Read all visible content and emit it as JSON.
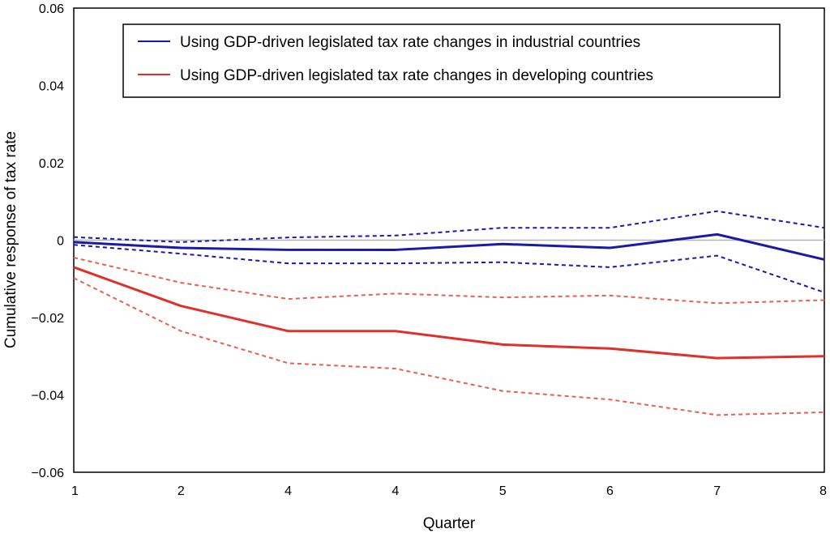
{
  "chart_data": {
    "type": "line",
    "title": "",
    "xlabel": "Quarter",
    "ylabel": "Cumulative response of tax rate",
    "categories": [
      "1",
      "2",
      "4",
      "4",
      "5",
      "6",
      "7",
      "8"
    ],
    "ylim": [
      -0.06,
      0.06
    ],
    "yticks": [
      "0.06",
      "0.04",
      "0.02",
      "0",
      "−0.02",
      "−0.04",
      "−0.06"
    ],
    "yticks_values": [
      0.06,
      0.04,
      0.02,
      0,
      -0.02,
      -0.04,
      -0.06
    ],
    "grid": false,
    "zero_line": true,
    "legend_position": "top",
    "series": [
      {
        "name": "Using GDP-driven legislated tax rate changes in industrial countries",
        "role": "estimate",
        "color": "#1a1aa8",
        "style": "solid",
        "values": [
          -0.0005,
          -0.002,
          -0.0025,
          -0.0025,
          -0.001,
          -0.002,
          0.0015,
          -0.005
        ]
      },
      {
        "role": "upper-band",
        "color": "#1a1aa8",
        "style": "dashed",
        "values": [
          0.0008,
          -0.0005,
          0.0007,
          0.0012,
          0.0032,
          0.0032,
          0.0075,
          0.0032
        ]
      },
      {
        "role": "lower-band",
        "color": "#1a1aa8",
        "style": "dashed",
        "values": [
          -0.0012,
          -0.0035,
          -0.006,
          -0.006,
          -0.0057,
          -0.007,
          -0.004,
          -0.0135
        ]
      },
      {
        "name": "Using GDP-driven legislated tax rate changes in developing countries",
        "role": "estimate",
        "color": "#e0302a",
        "style": "solid",
        "values": [
          -0.007,
          -0.017,
          -0.0235,
          -0.0235,
          -0.027,
          -0.028,
          -0.0305,
          -0.03
        ]
      },
      {
        "role": "upper-band",
        "color": "#e8604f",
        "style": "dashed",
        "values": [
          -0.0045,
          -0.011,
          -0.0152,
          -0.0138,
          -0.0148,
          -0.0143,
          -0.0163,
          -0.0155
        ]
      },
      {
        "role": "lower-band",
        "color": "#e8604f",
        "style": "dashed",
        "values": [
          -0.0098,
          -0.0235,
          -0.0318,
          -0.0332,
          -0.039,
          -0.0412,
          -0.0452,
          -0.0445
        ]
      }
    ]
  }
}
